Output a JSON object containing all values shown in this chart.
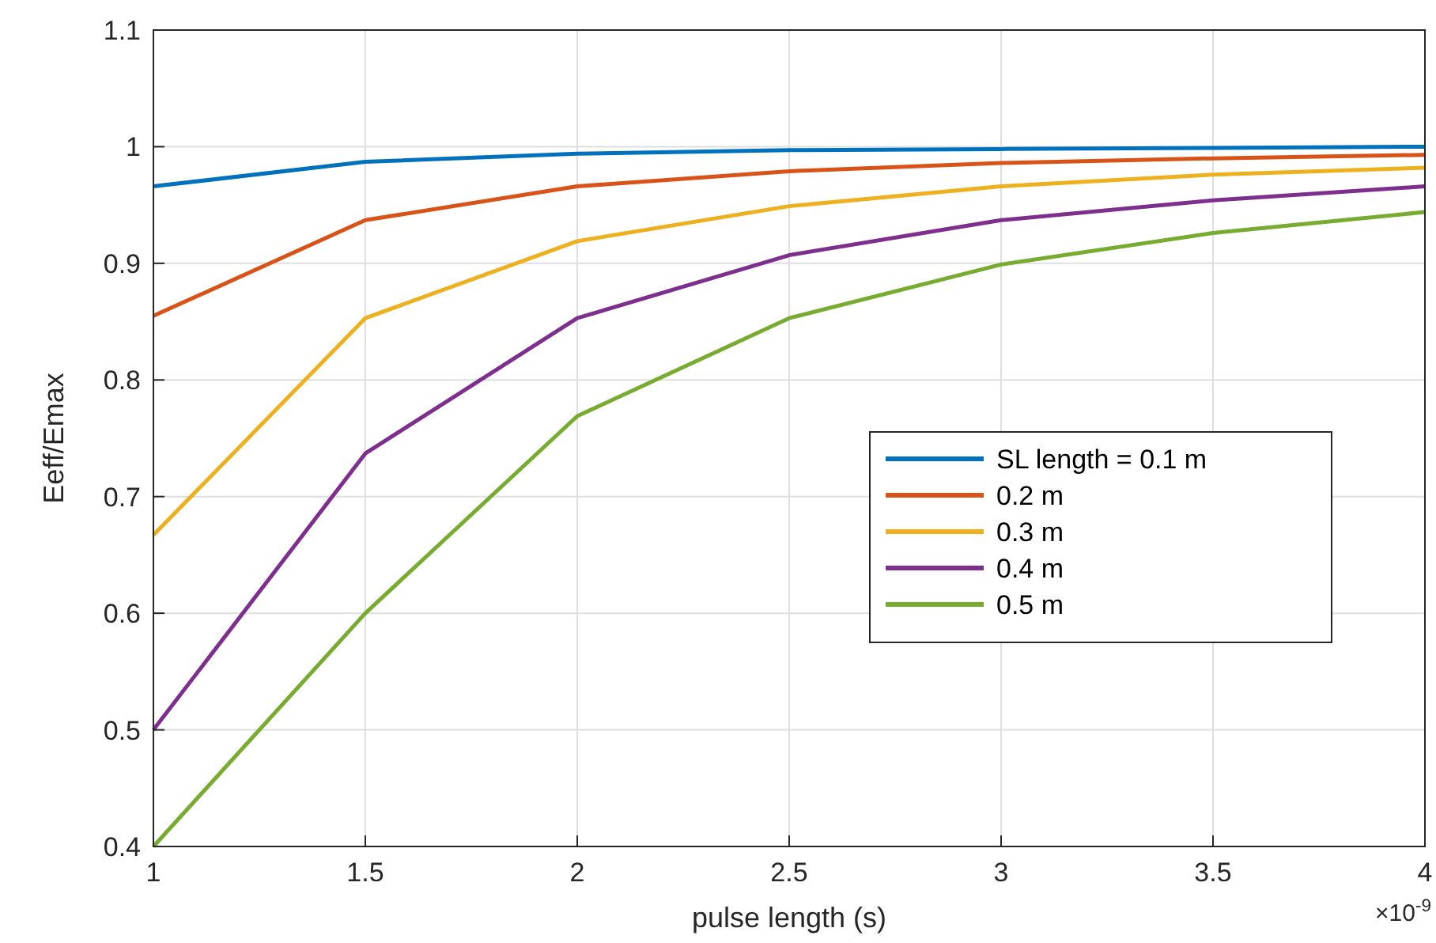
{
  "chart_data": {
    "type": "line",
    "xlabel": "pulse length (s)",
    "ylabel": "Eeff/Emax",
    "x": [
      1,
      1.5,
      2,
      2.5,
      3,
      3.5,
      4
    ],
    "series": [
      {
        "name": "SL length = 0.1 m",
        "color": "#0072bd",
        "values": [
          0.966,
          0.987,
          0.994,
          0.997,
          0.998,
          0.999,
          1.0
        ]
      },
      {
        "name": "0.2 m",
        "color": "#d95319",
        "values": [
          0.855,
          0.937,
          0.966,
          0.979,
          0.986,
          0.99,
          0.993
        ]
      },
      {
        "name": "0.3 m",
        "color": "#edb120",
        "values": [
          0.667,
          0.853,
          0.919,
          0.949,
          0.966,
          0.976,
          0.982
        ]
      },
      {
        "name": "0.4 m",
        "color": "#7e2f8e",
        "values": [
          0.5,
          0.737,
          0.853,
          0.907,
          0.937,
          0.954,
          0.966
        ]
      },
      {
        "name": "0.5 m",
        "color": "#77ac30",
        "values": [
          0.4,
          0.6,
          0.769,
          0.853,
          0.899,
          0.926,
          0.944
        ]
      }
    ],
    "xlim": [
      1,
      4
    ],
    "xticks": [
      1,
      1.5,
      2,
      2.5,
      3,
      3.5,
      4
    ],
    "ylim": [
      0.4,
      1.1
    ],
    "yticks": [
      0.4,
      0.5,
      0.6,
      0.7,
      0.8,
      0.9,
      1,
      1.1
    ],
    "annotations": [
      "×10$^{-9}$"
    ],
    "grid": true,
    "legend": "right",
    "line_style": "solid",
    "marker": "none"
  }
}
